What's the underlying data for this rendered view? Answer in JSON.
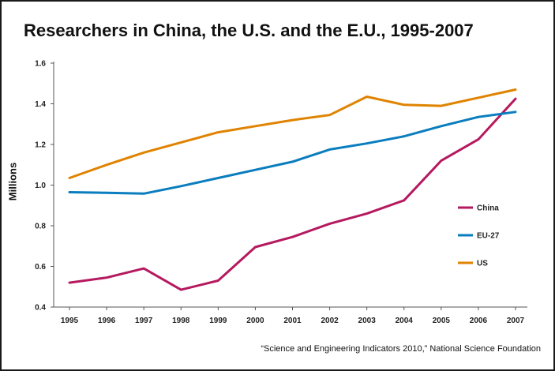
{
  "title": "Researchers in China, the U.S. and the E.U., 1995-2007",
  "source": "“Science and Engineering Indicators 2010,” National Science Foundation",
  "chart_data": {
    "type": "line",
    "title": "Researchers in China, the U.S. and the E.U., 1995-2007",
    "xlabel": "",
    "ylabel": "Millions",
    "x": [
      "1995",
      "1996",
      "1997",
      "1998",
      "1999",
      "2000",
      "2001",
      "2002",
      "2003",
      "2004",
      "2005",
      "2006",
      "2007"
    ],
    "ylim": [
      0.4,
      1.6
    ],
    "yticks": [
      "0.4",
      "0.6",
      "0.8",
      "1.0",
      "1.2",
      "1.4",
      "1.6"
    ],
    "grid": false,
    "legend_position": "right",
    "series": [
      {
        "name": "China",
        "color": "#b5195f",
        "values": [
          0.52,
          0.545,
          0.59,
          0.485,
          0.53,
          0.695,
          0.745,
          0.81,
          0.86,
          0.925,
          1.12,
          1.225,
          1.425
        ]
      },
      {
        "name": "EU-27",
        "color": "#0a7dbe",
        "values": [
          0.965,
          0.962,
          0.958,
          0.995,
          1.035,
          1.075,
          1.115,
          1.175,
          1.205,
          1.24,
          1.29,
          1.335,
          1.36
        ]
      },
      {
        "name": "US",
        "color": "#e08300",
        "values": [
          1.035,
          1.1,
          1.16,
          1.21,
          1.26,
          1.29,
          1.32,
          1.345,
          1.435,
          1.395,
          1.39,
          1.43,
          1.47
        ]
      }
    ]
  }
}
